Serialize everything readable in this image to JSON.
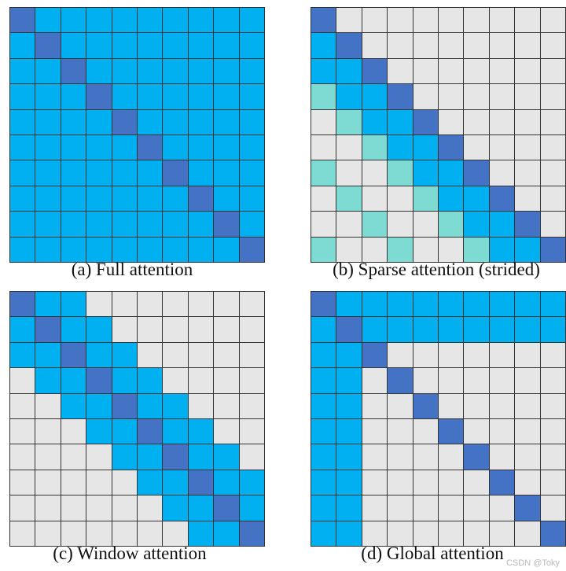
{
  "colors": {
    "diagonal": "#4472c4",
    "attend": "#00b0f0",
    "strided": "#7ddbd3",
    "none": "#e6e6e6",
    "gridline": "#333333"
  },
  "panels": [
    {
      "caption": "(a) Full attention",
      "pattern": "full"
    },
    {
      "caption": "(b) Sparse attention (strided)",
      "pattern": "strided"
    },
    {
      "caption": "(c) Window attention",
      "pattern": "window"
    },
    {
      "caption": "(d) Global attention",
      "pattern": "global"
    }
  ],
  "watermark": "CSDN @Toky"
}
